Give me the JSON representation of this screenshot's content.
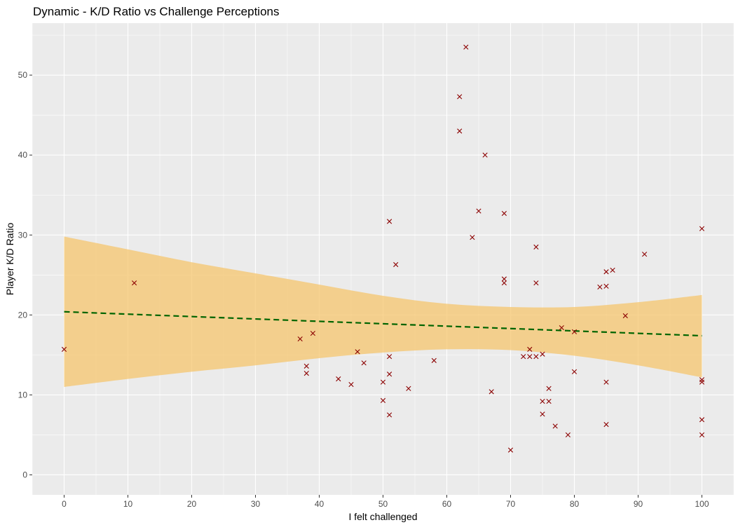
{
  "chart_data": {
    "type": "scatter",
    "title": "Dynamic - K/D Ratio vs Challenge Perceptions",
    "xlabel": "I felt challenged",
    "ylabel": "Player K/D Ratio",
    "xlim": [
      -5,
      105
    ],
    "ylim": [
      -2.5,
      56.5
    ],
    "x_ticks": [
      0,
      10,
      20,
      30,
      40,
      50,
      60,
      70,
      80,
      90,
      100
    ],
    "y_ticks": [
      0,
      10,
      20,
      30,
      40,
      50
    ],
    "grid": true,
    "legend": "none",
    "colors": {
      "panel": "#EBEBEB",
      "grid_major": "#FFFFFF",
      "ribbon": "#F5C66E",
      "trend": "#006400",
      "points": "#8B0000"
    },
    "series": [
      {
        "marker": "x",
        "points": [
          [
            0,
            15.7
          ],
          [
            11,
            24.0
          ],
          [
            37,
            17.0
          ],
          [
            39,
            17.7
          ],
          [
            38,
            13.6
          ],
          [
            38,
            12.7
          ],
          [
            43,
            12.0
          ],
          [
            45,
            11.3
          ],
          [
            46,
            15.4
          ],
          [
            47,
            14.0
          ],
          [
            50,
            11.6
          ],
          [
            50,
            9.3
          ],
          [
            51,
            31.7
          ],
          [
            51,
            14.8
          ],
          [
            51,
            12.6
          ],
          [
            51,
            7.5
          ],
          [
            52,
            26.3
          ],
          [
            54,
            10.8
          ],
          [
            58,
            14.3
          ],
          [
            62,
            47.3
          ],
          [
            62,
            43.0
          ],
          [
            63,
            53.5
          ],
          [
            64,
            29.7
          ],
          [
            65,
            33.0
          ],
          [
            66,
            40.0
          ],
          [
            67,
            10.4
          ],
          [
            69,
            32.7
          ],
          [
            69,
            24.5
          ],
          [
            69,
            24.0
          ],
          [
            70,
            3.1
          ],
          [
            72,
            14.8
          ],
          [
            73,
            15.7
          ],
          [
            73,
            14.8
          ],
          [
            74,
            28.5
          ],
          [
            74,
            24.0
          ],
          [
            74,
            14.8
          ],
          [
            75,
            15.1
          ],
          [
            75,
            9.2
          ],
          [
            75,
            7.6
          ],
          [
            76,
            10.8
          ],
          [
            76,
            9.2
          ],
          [
            77,
            6.1
          ],
          [
            78,
            18.4
          ],
          [
            79,
            5.0
          ],
          [
            80,
            17.9
          ],
          [
            80,
            12.9
          ],
          [
            84,
            23.5
          ],
          [
            85,
            25.4
          ],
          [
            85,
            23.6
          ],
          [
            85,
            11.6
          ],
          [
            85,
            6.3
          ],
          [
            86,
            25.6
          ],
          [
            88,
            19.9
          ],
          [
            91,
            27.6
          ],
          [
            100,
            30.8
          ],
          [
            100,
            11.9
          ],
          [
            100,
            11.6
          ],
          [
            100,
            6.9
          ],
          [
            100,
            5.0
          ]
        ]
      }
    ],
    "trend_line": {
      "style": "dashed",
      "x": [
        0,
        100
      ],
      "y": [
        20.4,
        17.4
      ]
    },
    "confidence_band": {
      "x": [
        0,
        10,
        20,
        30,
        40,
        50,
        60,
        70,
        80,
        90,
        100
      ],
      "lower": [
        11.0,
        12.0,
        12.9,
        13.7,
        14.6,
        15.3,
        15.7,
        15.6,
        14.9,
        13.7,
        12.2
      ],
      "upper": [
        29.8,
        28.2,
        26.6,
        25.2,
        23.8,
        22.4,
        21.4,
        21.0,
        21.0,
        21.6,
        22.5
      ]
    }
  }
}
